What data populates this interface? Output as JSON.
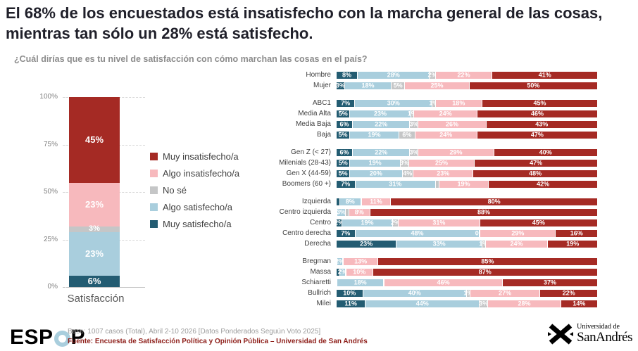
{
  "header": {
    "title_lines": [
      "El 68% de los encuestados está insatisfecho con la marcha general de las cosas,",
      "mientras tan sólo un 28% está satisfecho."
    ],
    "subtitle": "¿Cuál dirías que es tu nivel de satisfacción con cómo marchan las cosas en el país?"
  },
  "chart_data": [
    {
      "type": "bar",
      "stacked": true,
      "orientation": "vertical",
      "xlabel": "Satisfacción",
      "ylim": [
        0,
        100
      ],
      "grid": "dashed",
      "legend_position": "right",
      "yticks": [
        {
          "label": "100%",
          "value": 100
        },
        {
          "label": "75%",
          "value": 75
        },
        {
          "label": "50%",
          "value": 50
        },
        {
          "label": "25%",
          "value": 25
        },
        {
          "label": "0%",
          "value": 0
        }
      ],
      "series": [
        {
          "name": "Muy insatisfecho/a",
          "color": "#A52A24",
          "value": 45
        },
        {
          "name": "Algo insatisfecho/a",
          "color": "#F7B9BD",
          "value": 23
        },
        {
          "name": "No sé",
          "color": "#C5C6C7",
          "value": 3
        },
        {
          "name": "Algo satisfecho/a",
          "color": "#A9CEDD",
          "value": 23
        },
        {
          "name": "Muy satisfecho/a",
          "color": "#235C72",
          "value": 6
        }
      ]
    },
    {
      "type": "bar",
      "stacked": true,
      "orientation": "horizontal",
      "value_suffix": "%",
      "level_names": [
        "Muy satisfecho/a",
        "Algo satisfecho/a",
        "No sé",
        "Algo insatisfecho/a",
        "Muy insatisfecho/a"
      ],
      "palette": [
        "#235C72",
        "#A9CEDD",
        "#C5C6C7",
        "#F7B9BD",
        "#A52A24"
      ],
      "groups": [
        {
          "name": "genero",
          "rows": [
            {
              "label": "Hombre",
              "values": [
                8,
                28,
                2,
                22,
                41
              ]
            },
            {
              "label": "Mujer",
              "values": [
                3,
                18,
                5,
                25,
                50
              ]
            }
          ]
        },
        {
          "name": "nivel-socioeconomico",
          "rows": [
            {
              "label": "ABC1",
              "values": [
                7,
                30,
                1,
                18,
                45
              ]
            },
            {
              "label": "Media Alta",
              "values": [
                5,
                23,
                1,
                24,
                46
              ]
            },
            {
              "label": "Media Baja",
              "values": [
                6,
                22,
                3,
                26,
                43
              ]
            },
            {
              "label": "Baja",
              "values": [
                5,
                19,
                6,
                24,
                47
              ]
            }
          ]
        },
        {
          "name": "generacion",
          "rows": [
            {
              "label": "Gen Z (< 27)",
              "values": [
                6,
                22,
                3,
                29,
                40
              ]
            },
            {
              "label": "Milenials (28-43)",
              "values": [
                5,
                19,
                3,
                25,
                47
              ]
            },
            {
              "label": "Gen X (44-59)",
              "values": [
                5,
                20,
                4,
                23,
                48
              ]
            },
            {
              "label": "Boomers (60 +)",
              "values": [
                7,
                31,
                1,
                19,
                42
              ],
              "unlabeled": [
                2
              ]
            }
          ]
        },
        {
          "name": "orientacion-politica",
          "rows": [
            {
              "label": "Izquierda",
              "values": [
                1,
                8,
                0,
                11,
                80
              ],
              "unlabeled": [
                0
              ]
            },
            {
              "label": "Centro izquierda",
              "values": [
                0,
                3,
                1,
                8,
                88
              ],
              "unlabeled": [
                2
              ]
            },
            {
              "label": "Centro",
              "values": [
                2,
                19,
                2,
                31,
                45
              ]
            },
            {
              "label": "Centro derecha",
              "values": [
                7,
                48,
                0,
                29,
                16
              ],
              "force_label": [
                2
              ]
            },
            {
              "label": "Derecha",
              "values": [
                23,
                33,
                1,
                24,
                19
              ]
            }
          ]
        },
        {
          "name": "voto",
          "rows": [
            {
              "label": "Bregman",
              "values": [
                0,
                2,
                0,
                13,
                85
              ]
            },
            {
              "label": "Massa",
              "values": [
                1,
                2,
                0,
                10,
                87
              ],
              "unlabeled": [
                0
              ]
            },
            {
              "label": "Schiaretti",
              "values": [
                0,
                18,
                0,
                46,
                37
              ]
            },
            {
              "label": "Bullrich",
              "values": [
                10,
                40,
                1,
                27,
                22
              ]
            },
            {
              "label": "Milei",
              "values": [
                11,
                44,
                3,
                28,
                14
              ]
            }
          ]
        }
      ]
    }
  ],
  "footer": {
    "brand_prefix": "ESP",
    "brand_suffix": "P",
    "base": "Base: 1007 casos (Total), Abril 2-10 2026 [Datos Ponderados Seguún Voto 2025]",
    "fuente": "Fuente: Encuesta de Satisfacción Política y Opinión Pública – Universidad de San Andrés",
    "university": {
      "line1": "Universidad de",
      "line2": "SanAndrés"
    }
  }
}
